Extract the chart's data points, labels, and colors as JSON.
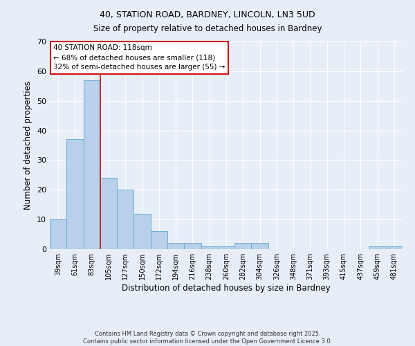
{
  "title_line1": "40, STATION ROAD, BARDNEY, LINCOLN, LN3 5UD",
  "title_line2": "Size of property relative to detached houses in Bardney",
  "xlabel": "Distribution of detached houses by size in Bardney",
  "ylabel": "Number of detached properties",
  "categories": [
    "39sqm",
    "61sqm",
    "83sqm",
    "105sqm",
    "127sqm",
    "150sqm",
    "172sqm",
    "194sqm",
    "216sqm",
    "238sqm",
    "260sqm",
    "282sqm",
    "304sqm",
    "326sqm",
    "348sqm",
    "371sqm",
    "393sqm",
    "415sqm",
    "437sqm",
    "459sqm",
    "481sqm"
  ],
  "values": [
    10,
    37,
    57,
    24,
    20,
    12,
    6,
    2,
    2,
    1,
    1,
    2,
    2,
    0,
    0,
    0,
    0,
    0,
    0,
    1,
    1
  ],
  "bar_color": "#b8d0ea",
  "bar_edge_color": "#6aaed6",
  "ylim": [
    0,
    70
  ],
  "yticks": [
    0,
    10,
    20,
    30,
    40,
    50,
    60,
    70
  ],
  "annotation_box_text": "40 STATION ROAD: 118sqm\n← 68% of detached houses are smaller (118)\n32% of semi-detached houses are larger (55) →",
  "vline_color": "#cc1111",
  "vline_pos": 2.5,
  "background_color": "#e8eef8",
  "grid_color": "#ffffff",
  "footer_line1": "Contains HM Land Registry data © Crown copyright and database right 2025.",
  "footer_line2": "Contains public sector information licensed under the Open Government Licence 3.0.",
  "title_fontsize": 9,
  "subtitle_fontsize": 8.5,
  "ylabel_fontsize": 8.5,
  "xlabel_fontsize": 8.5,
  "tick_fontsize": 7,
  "annotation_fontsize": 7.5,
  "footer_fontsize": 6
}
